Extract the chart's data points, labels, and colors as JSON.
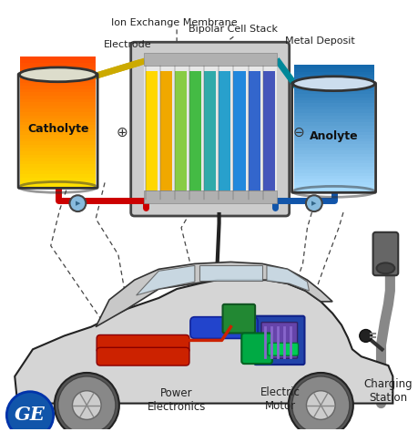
{
  "bg_color": "#ffffff",
  "labels": {
    "ion_exchange": "Ion Exchange Membrane",
    "electrode": "Electrode",
    "bipolar": "Bipolar Cell Stack",
    "metal_deposit": "Metal Deposit",
    "catholyte": "Catholyte",
    "anolyte": "Anolyte",
    "power_electronics": "Power\nElectronics",
    "electric_motor": "Electric\nMotor",
    "charging_station": "Charging\nStation"
  },
  "colors": {
    "catholyte_top": "#FFE000",
    "catholyte_bottom": "#FF4400",
    "anolyte_top": "#aaddff",
    "anolyte_bottom": "#1166aa",
    "pipe_red": "#CC0000",
    "pipe_blue": "#1155AA",
    "pipe_yellow": "#CCAA00",
    "pipe_teal": "#008899",
    "car_body": "#d8d8d8",
    "car_outline": "#222222",
    "car_interior": "#e8e8e8",
    "battery_red": "#CC2200",
    "motor_green": "#00AA44",
    "motor_blue": "#2255CC",
    "pe_green": "#228833",
    "motor_purple": "#6644aa",
    "stack_bg": "#dddddd",
    "stack_border": "#444444",
    "tank_border": "#333333",
    "label_color": "#222222",
    "dashed_line": "#444444",
    "ge_blue": "#1155AA",
    "plus_minus": "#333333",
    "pump_color": "#88bbdd",
    "wheel_dark": "#555555",
    "wheel_light": "#cccccc"
  },
  "figsize": [
    4.6,
    4.74
  ],
  "dpi": 100
}
